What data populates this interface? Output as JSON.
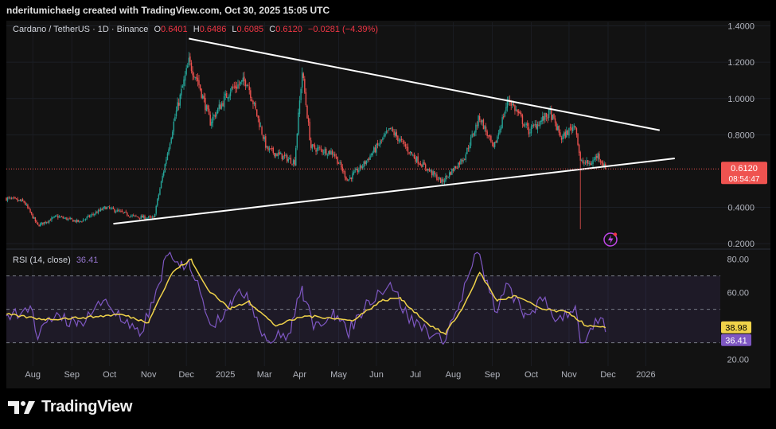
{
  "header": {
    "attribution": "nderitumichaelg created with TradingView.com, Oct 30, 2025 15:05 UTC"
  },
  "legend": {
    "symbol": "Cardano / TetherUS · 1D · Binance",
    "open_label": "O",
    "open": "0.6401",
    "high_label": "H",
    "high": "0.6486",
    "low_label": "L",
    "low": "0.6085",
    "close_label": "C",
    "close": "0.6120",
    "change": "−0.0281 (−4.39%)"
  },
  "rsi_legend": {
    "name": "RSI (14, close)",
    "rsi": "36.41",
    "rsi_ma": "38.98"
  },
  "price_badge": {
    "price": "0.6120",
    "countdown": "08:54:47"
  },
  "brand": {
    "name": "TradingView"
  },
  "colors": {
    "up": "#26a69a",
    "down": "#ef5350",
    "rsi": "#7e57c2",
    "rsi_ma": "#f0d34a",
    "background": "#121212",
    "trendline": "#ffffff"
  },
  "chart_data": [
    {
      "type": "candlestick",
      "title": "Cardano / TetherUS · 1D · Binance",
      "price_axis": {
        "ticks": [
          "1.4000",
          "1.2000",
          "1.0000",
          "0.8000",
          "0.6120",
          "0.4000",
          "0.2000"
        ],
        "range": [
          0.17,
          1.42
        ]
      },
      "time_axis": {
        "ticks": [
          "Aug",
          "Sep",
          "Oct",
          "Nov",
          "Dec",
          "2025",
          "Mar",
          "Apr",
          "May",
          "Jun",
          "Jul",
          "Aug",
          "Sep",
          "Oct",
          "Nov",
          "Dec",
          "2026"
        ],
        "range": [
          "2024-07-11",
          "2026-01-26"
        ]
      },
      "last_price": 0.612,
      "ohlc": {
        "open": 0.6401,
        "high": 0.6486,
        "low": 0.6085,
        "close": 0.612
      },
      "price_path": [
        {
          "date": "2024-07-11",
          "price": 0.45
        },
        {
          "date": "2024-07-25",
          "price": 0.43
        },
        {
          "date": "2024-08-05",
          "price": 0.3
        },
        {
          "date": "2024-08-20",
          "price": 0.35
        },
        {
          "date": "2024-09-07",
          "price": 0.32
        },
        {
          "date": "2024-09-28",
          "price": 0.4
        },
        {
          "date": "2024-10-20",
          "price": 0.35
        },
        {
          "date": "2024-11-05",
          "price": 0.34
        },
        {
          "date": "2024-11-12",
          "price": 0.57
        },
        {
          "date": "2024-11-22",
          "price": 0.9
        },
        {
          "date": "2024-12-03",
          "price": 1.2
        },
        {
          "date": "2024-12-10",
          "price": 1.1
        },
        {
          "date": "2024-12-20",
          "price": 0.87
        },
        {
          "date": "2025-01-05",
          "price": 1.05
        },
        {
          "date": "2025-01-18",
          "price": 1.1
        },
        {
          "date": "2025-02-03",
          "price": 0.72
        },
        {
          "date": "2025-02-25",
          "price": 0.65
        },
        {
          "date": "2025-03-03",
          "price": 1.15
        },
        {
          "date": "2025-03-10",
          "price": 0.73
        },
        {
          "date": "2025-03-28",
          "price": 0.7
        },
        {
          "date": "2025-04-08",
          "price": 0.55
        },
        {
          "date": "2025-04-20",
          "price": 0.63
        },
        {
          "date": "2025-05-12",
          "price": 0.83
        },
        {
          "date": "2025-06-01",
          "price": 0.67
        },
        {
          "date": "2025-06-22",
          "price": 0.54
        },
        {
          "date": "2025-07-10",
          "price": 0.68
        },
        {
          "date": "2025-07-22",
          "price": 0.9
        },
        {
          "date": "2025-08-02",
          "price": 0.72
        },
        {
          "date": "2025-08-14",
          "price": 1.0
        },
        {
          "date": "2025-08-30",
          "price": 0.82
        },
        {
          "date": "2025-09-16",
          "price": 0.92
        },
        {
          "date": "2025-09-25",
          "price": 0.78
        },
        {
          "date": "2025-10-06",
          "price": 0.86
        },
        {
          "date": "2025-10-10",
          "price": 0.65
        },
        {
          "date": "2025-10-18",
          "price": 0.64
        },
        {
          "date": "2025-10-24",
          "price": 0.69
        },
        {
          "date": "2025-10-30",
          "price": 0.612
        }
      ],
      "wick_low": {
        "date": "2025-10-10",
        "price": 0.28
      },
      "trendlines": [
        {
          "name": "upper",
          "from": {
            "date": "2024-12-03",
            "price": 1.33
          },
          "to": {
            "date": "2025-12-12",
            "price": 0.825
          }
        },
        {
          "name": "lower",
          "from": {
            "date": "2024-10-04",
            "price": 0.31
          },
          "to": {
            "date": "2025-12-24",
            "price": 0.67
          }
        }
      ]
    },
    {
      "type": "line",
      "title": "RSI (14, close)",
      "y_axis": {
        "ticks": [
          "80.00",
          "60.00",
          "20.00"
        ],
        "range": [
          16,
          86
        ]
      },
      "bands": {
        "upper": 70,
        "middle": 50,
        "lower": 30
      },
      "series": [
        {
          "name": "RSI",
          "last": 36.41,
          "points": [
            {
              "date": "2024-07-11",
              "value": 46
            },
            {
              "date": "2024-07-30",
              "value": 52
            },
            {
              "date": "2024-08-05",
              "value": 32
            },
            {
              "date": "2024-08-20",
              "value": 48
            },
            {
              "date": "2024-09-05",
              "value": 40
            },
            {
              "date": "2024-09-28",
              "value": 56
            },
            {
              "date": "2024-10-12",
              "value": 42
            },
            {
              "date": "2024-10-25",
              "value": 34
            },
            {
              "date": "2024-11-05",
              "value": 54
            },
            {
              "date": "2024-11-15",
              "value": 82
            },
            {
              "date": "2024-11-26",
              "value": 75
            },
            {
              "date": "2024-12-03",
              "value": 80
            },
            {
              "date": "2024-12-12",
              "value": 60
            },
            {
              "date": "2024-12-22",
              "value": 40
            },
            {
              "date": "2025-01-05",
              "value": 55
            },
            {
              "date": "2025-01-18",
              "value": 60
            },
            {
              "date": "2025-02-03",
              "value": 31
            },
            {
              "date": "2025-02-22",
              "value": 36
            },
            {
              "date": "2025-03-03",
              "value": 64
            },
            {
              "date": "2025-03-12",
              "value": 38
            },
            {
              "date": "2025-03-28",
              "value": 50
            },
            {
              "date": "2025-04-08",
              "value": 35
            },
            {
              "date": "2025-04-25",
              "value": 55
            },
            {
              "date": "2025-05-12",
              "value": 66
            },
            {
              "date": "2025-05-26",
              "value": 45
            },
            {
              "date": "2025-06-10",
              "value": 38
            },
            {
              "date": "2025-06-22",
              "value": 30
            },
            {
              "date": "2025-07-05",
              "value": 50
            },
            {
              "date": "2025-07-20",
              "value": 84
            },
            {
              "date": "2025-07-30",
              "value": 60
            },
            {
              "date": "2025-08-05",
              "value": 48
            },
            {
              "date": "2025-08-14",
              "value": 65
            },
            {
              "date": "2025-08-26",
              "value": 45
            },
            {
              "date": "2025-09-10",
              "value": 55
            },
            {
              "date": "2025-09-22",
              "value": 44
            },
            {
              "date": "2025-10-06",
              "value": 52
            },
            {
              "date": "2025-10-10",
              "value": 30
            },
            {
              "date": "2025-10-20",
              "value": 38
            },
            {
              "date": "2025-10-26",
              "value": 45
            },
            {
              "date": "2025-10-30",
              "value": 36.41
            }
          ]
        },
        {
          "name": "RSI MA",
          "last": 38.98,
          "points": [
            {
              "date": "2024-07-11",
              "value": 47
            },
            {
              "date": "2024-08-10",
              "value": 44
            },
            {
              "date": "2024-09-10",
              "value": 45
            },
            {
              "date": "2024-10-10",
              "value": 47
            },
            {
              "date": "2024-11-01",
              "value": 42
            },
            {
              "date": "2024-11-20",
              "value": 72
            },
            {
              "date": "2024-12-05",
              "value": 80
            },
            {
              "date": "2024-12-18",
              "value": 62
            },
            {
              "date": "2025-01-05",
              "value": 50
            },
            {
              "date": "2025-01-20",
              "value": 55
            },
            {
              "date": "2025-02-10",
              "value": 40
            },
            {
              "date": "2025-03-05",
              "value": 46
            },
            {
              "date": "2025-03-25",
              "value": 45
            },
            {
              "date": "2025-04-12",
              "value": 43
            },
            {
              "date": "2025-05-05",
              "value": 55
            },
            {
              "date": "2025-05-20",
              "value": 57
            },
            {
              "date": "2025-06-10",
              "value": 42
            },
            {
              "date": "2025-06-25",
              "value": 35
            },
            {
              "date": "2025-07-08",
              "value": 50
            },
            {
              "date": "2025-07-22",
              "value": 72
            },
            {
              "date": "2025-08-05",
              "value": 55
            },
            {
              "date": "2025-08-20",
              "value": 58
            },
            {
              "date": "2025-09-10",
              "value": 50
            },
            {
              "date": "2025-10-01",
              "value": 48
            },
            {
              "date": "2025-10-15",
              "value": 40
            },
            {
              "date": "2025-10-30",
              "value": 38.98
            }
          ]
        }
      ]
    }
  ]
}
